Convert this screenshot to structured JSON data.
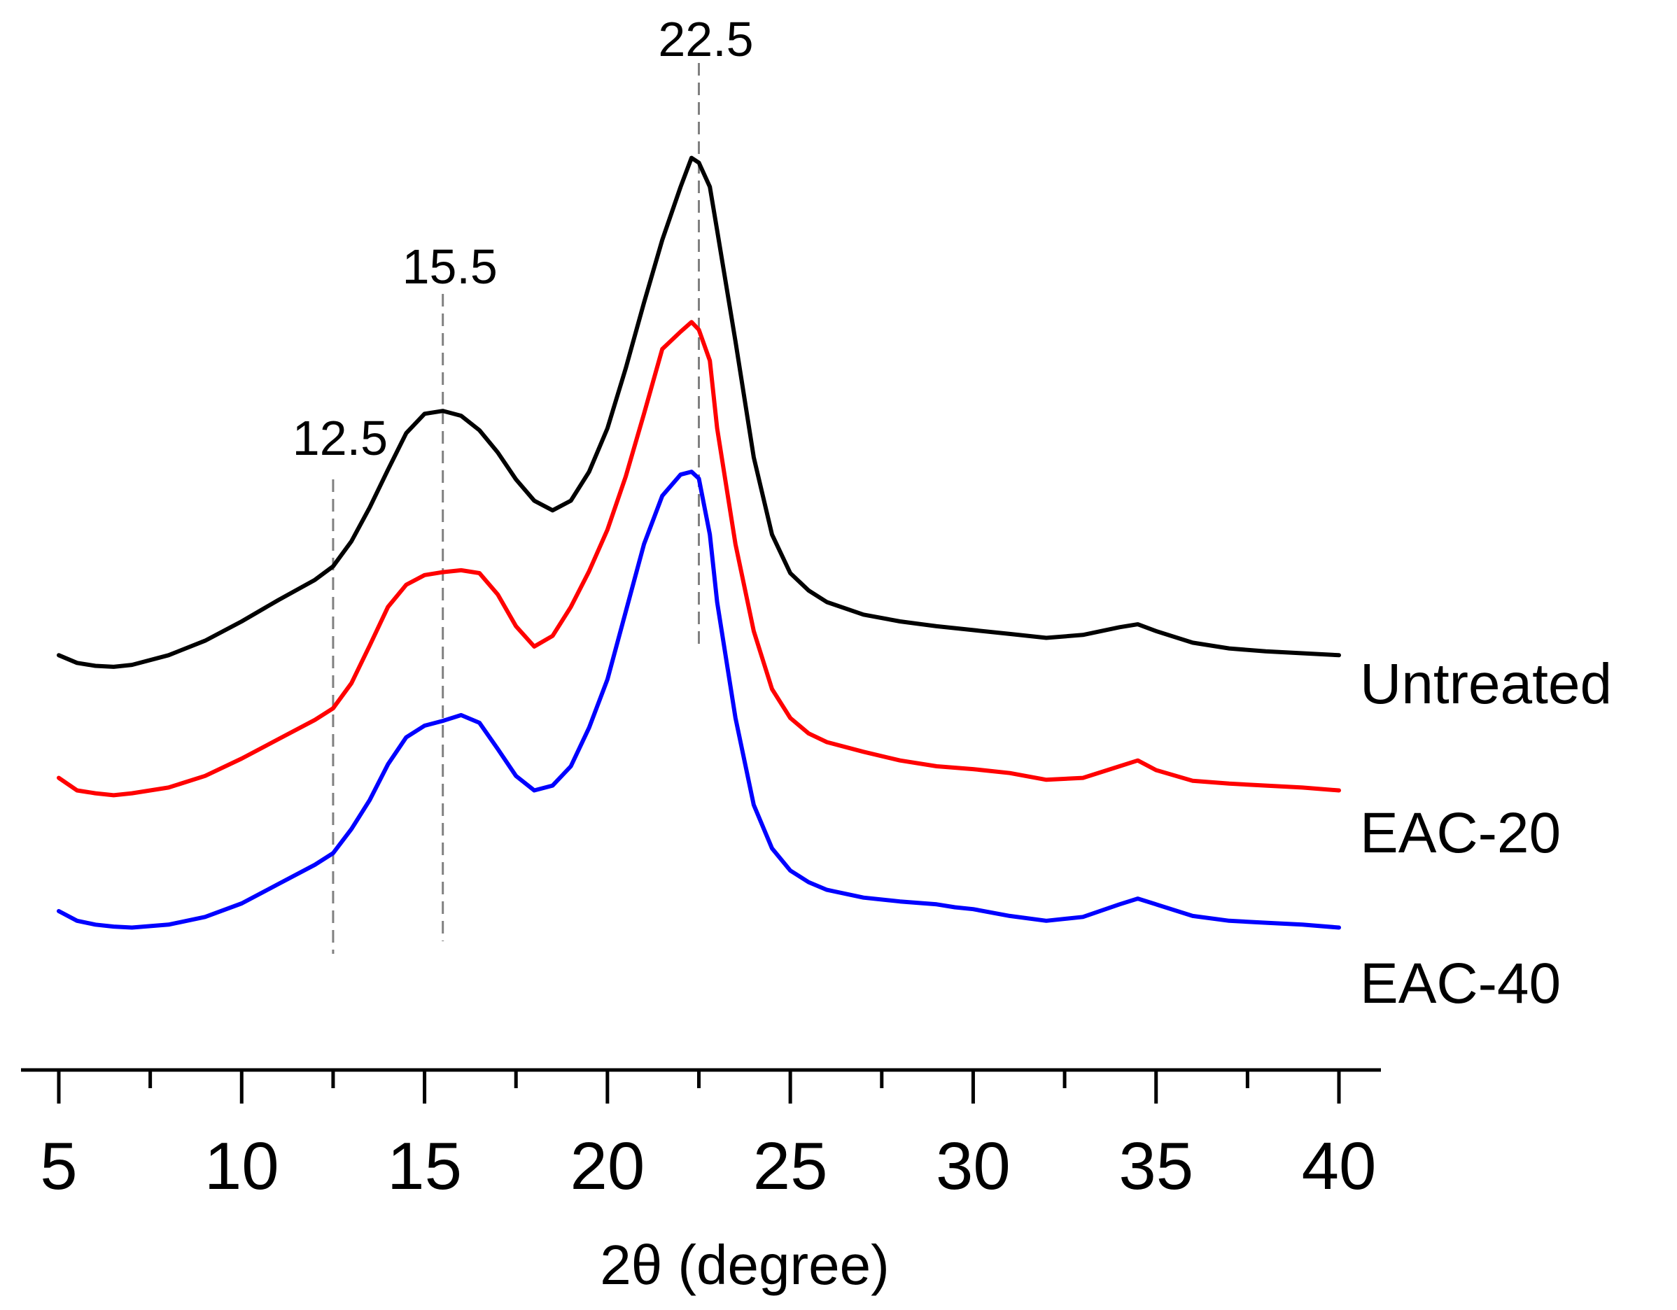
{
  "chart_data": {
    "type": "line",
    "title": "",
    "xlabel": "2θ (degree)",
    "ylabel": "",
    "xlim": [
      5,
      40
    ],
    "xticks": [
      5,
      10,
      15,
      20,
      25,
      30,
      35,
      40
    ],
    "xminor": [
      7.5,
      12.5,
      17.5,
      22.5,
      27.5,
      32.5,
      37.5
    ],
    "yaxis_visible": false,
    "annotations": [
      {
        "x": 12.5,
        "label": "12.5",
        "style": "dashed",
        "color": "#808080"
      },
      {
        "x": 15.5,
        "label": "15.5",
        "style": "dashed",
        "color": "#808080"
      },
      {
        "x": 22.5,
        "label": "22.5",
        "style": "dashed",
        "color": "#808080"
      }
    ],
    "series": [
      {
        "name": "Untreated",
        "color": "#000000",
        "x": [
          5.0,
          5.5,
          6.0,
          6.5,
          7.0,
          8.0,
          9.0,
          10.0,
          11.0,
          12.0,
          12.5,
          13.0,
          13.5,
          14.0,
          14.5,
          15.0,
          15.5,
          16.0,
          16.5,
          17.0,
          17.5,
          18.0,
          18.5,
          19.0,
          19.5,
          20.0,
          20.5,
          21.0,
          21.5,
          22.0,
          22.3,
          22.5,
          22.8,
          23.0,
          23.5,
          24.0,
          24.5,
          25.0,
          25.5,
          26.0,
          27.0,
          28.0,
          29.0,
          30.0,
          31.0,
          32.0,
          33.0,
          34.0,
          34.5,
          35.0,
          36.0,
          37.0,
          38.0,
          39.0,
          40.0
        ],
        "y": [
          0.635,
          0.643,
          0.646,
          0.647,
          0.645,
          0.635,
          0.62,
          0.6,
          0.578,
          0.557,
          0.543,
          0.517,
          0.482,
          0.443,
          0.405,
          0.385,
          0.382,
          0.387,
          0.402,
          0.425,
          0.453,
          0.475,
          0.485,
          0.475,
          0.445,
          0.4,
          0.338,
          0.27,
          0.205,
          0.15,
          0.12,
          0.125,
          0.15,
          0.195,
          0.31,
          0.43,
          0.51,
          0.55,
          0.568,
          0.58,
          0.593,
          0.6,
          0.605,
          0.609,
          0.613,
          0.617,
          0.614,
          0.606,
          0.603,
          0.61,
          0.622,
          0.628,
          0.631,
          0.633,
          0.635
        ]
      },
      {
        "name": "EAC-20",
        "color": "#ff0000",
        "x": [
          5.0,
          5.5,
          6.0,
          6.5,
          7.0,
          8.0,
          9.0,
          10.0,
          11.0,
          12.0,
          12.5,
          13.0,
          13.5,
          14.0,
          14.5,
          15.0,
          15.5,
          16.0,
          16.5,
          17.0,
          17.5,
          18.0,
          18.5,
          19.0,
          19.5,
          20.0,
          20.5,
          21.0,
          21.5,
          22.0,
          22.3,
          22.5,
          22.8,
          23.0,
          23.5,
          24.0,
          24.5,
          25.0,
          25.5,
          26.0,
          27.0,
          28.0,
          29.0,
          30.0,
          31.0,
          32.0,
          33.0,
          34.0,
          34.5,
          35.0,
          36.0,
          37.0,
          38.0,
          39.0,
          40.0
        ],
        "y": [
          0.762,
          0.775,
          0.778,
          0.78,
          0.778,
          0.772,
          0.76,
          0.742,
          0.722,
          0.702,
          0.69,
          0.664,
          0.625,
          0.585,
          0.562,
          0.552,
          0.549,
          0.547,
          0.55,
          0.572,
          0.605,
          0.626,
          0.615,
          0.585,
          0.548,
          0.505,
          0.45,
          0.385,
          0.318,
          0.3,
          0.29,
          0.298,
          0.33,
          0.4,
          0.52,
          0.61,
          0.67,
          0.7,
          0.716,
          0.725,
          0.735,
          0.744,
          0.75,
          0.753,
          0.757,
          0.764,
          0.762,
          0.75,
          0.744,
          0.754,
          0.765,
          0.768,
          0.77,
          0.772,
          0.775
        ]
      },
      {
        "name": "EAC-40",
        "color": "#0000ff",
        "x": [
          5.0,
          5.5,
          6.0,
          6.5,
          7.0,
          8.0,
          9.0,
          10.0,
          11.0,
          12.0,
          12.5,
          13.0,
          13.5,
          14.0,
          14.5,
          15.0,
          15.5,
          16.0,
          16.5,
          17.0,
          17.5,
          18.0,
          18.5,
          19.0,
          19.5,
          20.0,
          20.5,
          21.0,
          21.5,
          22.0,
          22.3,
          22.5,
          22.8,
          23.0,
          23.5,
          24.0,
          24.5,
          25.0,
          25.5,
          26.0,
          27.0,
          28.0,
          29.0,
          29.5,
          30.0,
          31.0,
          32.0,
          33.0,
          34.0,
          34.5,
          35.0,
          36.0,
          37.0,
          38.0,
          39.0,
          40.0
        ],
        "y": [
          0.9,
          0.91,
          0.914,
          0.916,
          0.917,
          0.914,
          0.906,
          0.892,
          0.872,
          0.852,
          0.84,
          0.815,
          0.785,
          0.748,
          0.72,
          0.708,
          0.703,
          0.697,
          0.705,
          0.732,
          0.76,
          0.775,
          0.77,
          0.75,
          0.71,
          0.66,
          0.59,
          0.52,
          0.47,
          0.448,
          0.445,
          0.452,
          0.51,
          0.58,
          0.7,
          0.79,
          0.835,
          0.858,
          0.87,
          0.878,
          0.886,
          0.89,
          0.893,
          0.896,
          0.898,
          0.905,
          0.91,
          0.906,
          0.893,
          0.887,
          0.893,
          0.905,
          0.91,
          0.912,
          0.914,
          0.917
        ]
      }
    ]
  }
}
